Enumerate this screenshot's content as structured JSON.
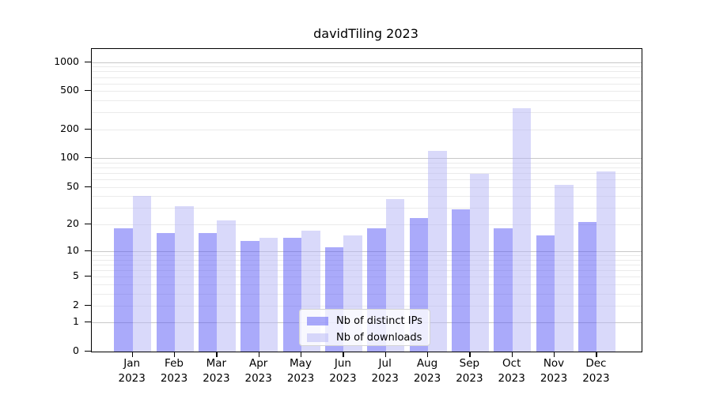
{
  "title": "davidTiling 2023",
  "y_axis": {
    "tick_labels": [
      "0",
      "1",
      "2",
      "5",
      "10",
      "20",
      "50",
      "100",
      "200",
      "500",
      "1000"
    ]
  },
  "x_axis": {
    "year": "2023",
    "months": [
      "Jan",
      "Feb",
      "Mar",
      "Apr",
      "May",
      "Jun",
      "Jul",
      "Aug",
      "Sep",
      "Oct",
      "Nov",
      "Dec"
    ]
  },
  "legend": {
    "items": [
      {
        "label": "Nb of distinct IPs",
        "color": "rgba(85,85,245,0.5)"
      },
      {
        "label": "Nb of downloads",
        "color": "rgba(180,180,245,0.5)"
      }
    ]
  },
  "chart_data": {
    "type": "bar",
    "title": "davidTiling 2023",
    "categories": [
      "Jan 2023",
      "Feb 2023",
      "Mar 2023",
      "Apr 2023",
      "May 2023",
      "Jun 2023",
      "Jul 2023",
      "Aug 2023",
      "Sep 2023",
      "Oct 2023",
      "Nov 2023",
      "Dec 2023"
    ],
    "series": [
      {
        "name": "Nb of distinct IPs",
        "color": "rgba(85,85,245,0.5)",
        "rendered_color": "#aaaafa",
        "values": [
          18,
          16,
          16,
          13,
          14,
          11,
          18,
          23,
          29,
          18,
          15,
          21
        ]
      },
      {
        "name": "Nb of downloads",
        "color": "rgba(180,180,245,0.5)",
        "rendered_color": "#d9d9fa",
        "values": [
          40,
          31,
          22,
          14,
          17,
          15,
          37,
          120,
          69,
          330,
          52,
          72
        ]
      }
    ],
    "yscale": "symlog (position proportional to ln(1+value))",
    "yticks": [
      0,
      1,
      2,
      5,
      10,
      20,
      50,
      100,
      200,
      500,
      1000
    ],
    "ylim": [
      0,
      1390
    ],
    "grid": true,
    "grid_major_values": [
      1,
      10,
      100,
      1000
    ],
    "grid_minor_values": [
      2,
      3,
      4,
      5,
      6,
      7,
      8,
      9,
      20,
      30,
      40,
      50,
      60,
      70,
      80,
      90,
      200,
      300,
      400,
      500,
      600,
      700,
      800,
      900
    ],
    "legend_position": "inside-bottom-center"
  },
  "colors": {
    "background": "#ffffff",
    "spine": "#000000",
    "grid_major": "#c8c8c8",
    "grid_minor": "#ebebeb",
    "text": "#000000",
    "legend_border": "#d4d4d4",
    "legend_background": "rgba(255,255,255,0.8)"
  }
}
